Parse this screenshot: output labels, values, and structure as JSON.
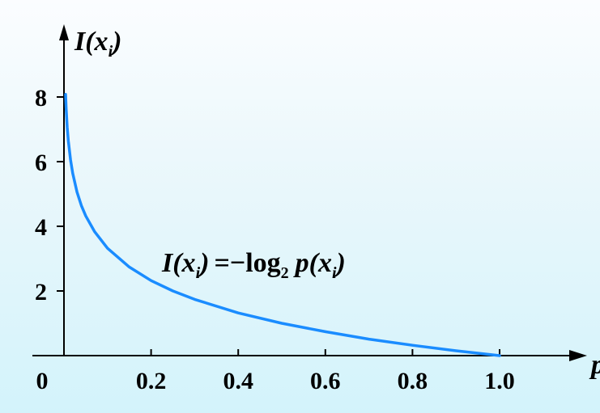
{
  "chart_data": {
    "type": "line",
    "ylabel": {
      "main": "I(x",
      "sub": "i",
      "close": ")"
    },
    "xlabel": {
      "main": "p"
    },
    "annotation": {
      "lhs_main": "I(x",
      "lhs_sub": "i",
      "lhs_close": ")",
      "equals": "=",
      "minus": "−",
      "log": "log",
      "log_base": "2",
      "rhs_main": "p(x",
      "rhs_sub": "i",
      "rhs_close": ")"
    },
    "origin_label": "0",
    "x_ticks": [
      "0.2",
      "0.4",
      "0.6",
      "0.8",
      "1.0"
    ],
    "y_ticks": [
      "2",
      "4",
      "6",
      "8"
    ],
    "xlim": [
      0,
      1.0
    ],
    "ylim": [
      0,
      8
    ],
    "series": [
      {
        "color": "#1a8cff",
        "function": "-log2(p)",
        "x": [
          0.0037,
          0.005,
          0.0075,
          0.01,
          0.015,
          0.02,
          0.03,
          0.04,
          0.05,
          0.07,
          0.1,
          0.15,
          0.2,
          0.25,
          0.3,
          0.4,
          0.5,
          0.6,
          0.7,
          0.8,
          0.9,
          1.0
        ],
        "y": [
          8.08,
          7.64,
          7.06,
          6.64,
          6.06,
          5.64,
          5.06,
          4.64,
          4.32,
          3.84,
          3.32,
          2.74,
          2.32,
          2.0,
          1.74,
          1.32,
          1.0,
          0.74,
          0.51,
          0.32,
          0.15,
          0.0
        ]
      }
    ]
  }
}
